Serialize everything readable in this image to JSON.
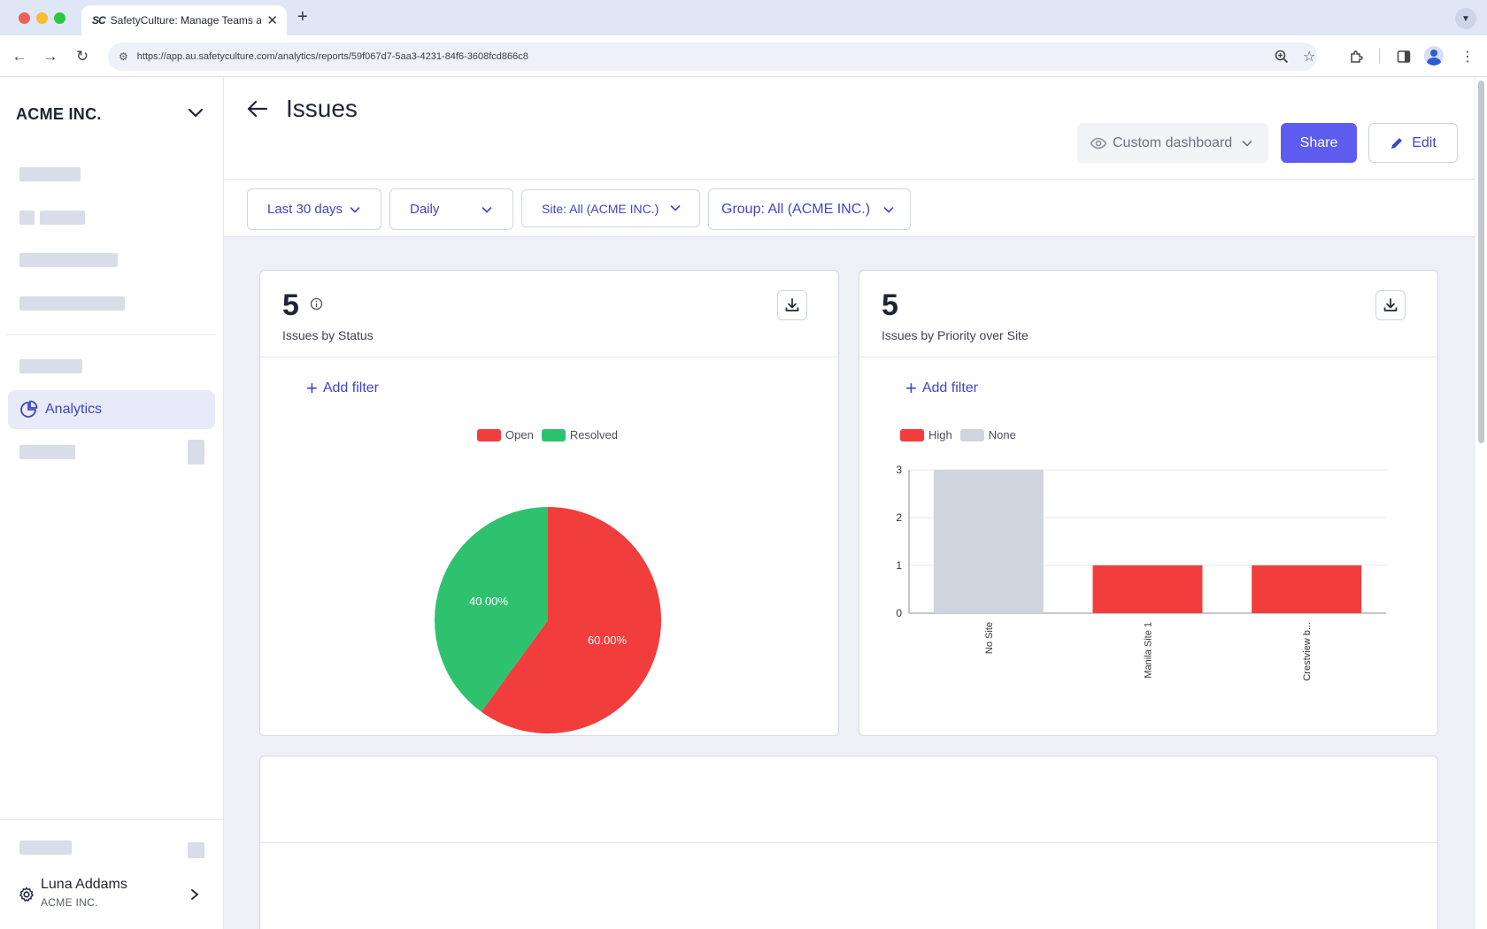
{
  "browser": {
    "tab_title": "SafetyCulture: Manage Teams and...",
    "tab_favicon": "SC",
    "url": "https://app.au.safetyculture.com/analytics/reports/59f067d7-5aa3-4231-84f6-3608fcd866c8"
  },
  "sidebar": {
    "org_name": "ACME INC.",
    "active_item": {
      "label": "Analytics",
      "icon": "pie-chart-icon"
    },
    "user": {
      "name": "Luna Addams",
      "org": "ACME INC."
    }
  },
  "header": {
    "title": "Issues",
    "custom_dashboard_label": "Custom dashboard",
    "share_label": "Share",
    "edit_label": "Edit"
  },
  "filters": [
    {
      "label": "Last 30 days"
    },
    {
      "label": "Daily"
    },
    {
      "label": "Site: All (ACME INC.)"
    },
    {
      "label": "Group: All (ACME INC.)"
    }
  ],
  "cards": [
    {
      "metric": "5",
      "subtitle": "Issues by Status",
      "add_filter_label": "Add filter",
      "legend": [
        {
          "label": "Open",
          "color": "#f23d3d"
        },
        {
          "label": "Resolved",
          "color": "#2ec26e"
        }
      ]
    },
    {
      "metric": "5",
      "subtitle": "Issues by Priority over Site",
      "add_filter_label": "Add filter",
      "legend": [
        {
          "label": "High",
          "color": "#f23d3d"
        },
        {
          "label": "None",
          "color": "#cfd4df"
        }
      ]
    }
  ],
  "chart_data": [
    {
      "type": "pie",
      "slices": [
        {
          "label": "Open",
          "value": 60,
          "display": "60.00%",
          "color": "#f23d3d"
        },
        {
          "label": "Resolved",
          "value": 40,
          "display": "40.00%",
          "color": "#2ec26e"
        }
      ]
    },
    {
      "type": "bar",
      "categories": [
        "No Site",
        "Manila Site 1",
        "Crestview b..."
      ],
      "series": [
        {
          "name": "None",
          "values": [
            3,
            0,
            0
          ],
          "color": "#cfd4df"
        },
        {
          "name": "High",
          "values": [
            0,
            1,
            1
          ],
          "color": "#f23d3d"
        }
      ],
      "ylim": [
        0,
        3
      ],
      "yticks": [
        "0",
        "1",
        "2",
        "3"
      ],
      "grid": true
    }
  ]
}
